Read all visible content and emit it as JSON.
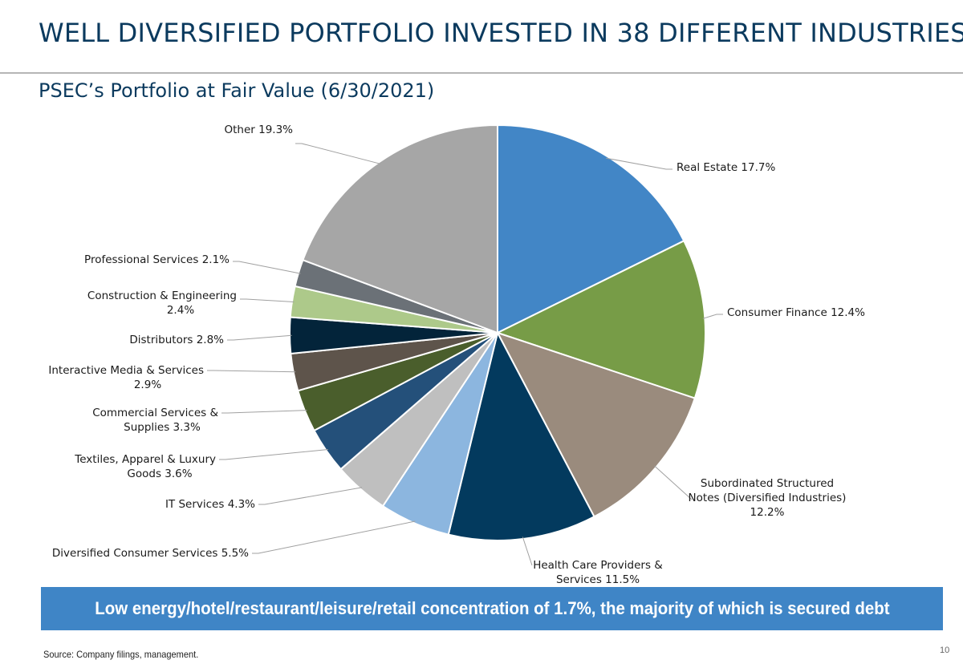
{
  "slide": {
    "title": "WELL DIVERSIFIED PORTFOLIO INVESTED IN 38 DIFFERENT INDUSTRIES",
    "subtitle": "PSEC’s Portfolio at Fair Value (6/30/2021)",
    "banner": "Low energy/hotel/restaurant/leisure/retail concentration of 1.7%, the majority of which is secured debt",
    "source": "Source: Company filings, management.",
    "page_number": "10"
  },
  "chart_data": {
    "type": "pie",
    "title": "PSEC’s Portfolio at Fair Value (6/30/2021)",
    "slices": [
      {
        "label": "Real Estate",
        "value": 17.7,
        "color": "#4286c6",
        "label_lines": [
          "Real Estate 17.7%"
        ]
      },
      {
        "label": "Consumer Finance",
        "value": 12.4,
        "color": "#779c47",
        "label_lines": [
          "Consumer Finance 12.4%"
        ]
      },
      {
        "label": "Subordinated Structured Notes (Diversified Industries)",
        "value": 12.2,
        "color": "#9a8b7d",
        "label_lines": [
          "Subordinated Structured",
          "Notes (Diversified Industries)",
          "12.2%"
        ]
      },
      {
        "label": "Health Care Providers & Services",
        "value": 11.5,
        "color": "#033a5e",
        "label_lines": [
          "Health Care Providers &",
          "Services 11.5%"
        ]
      },
      {
        "label": "Diversified Consumer Services",
        "value": 5.5,
        "color": "#8cb6df",
        "label_lines": [
          "Diversified Consumer Services 5.5%"
        ]
      },
      {
        "label": "IT Services",
        "value": 4.3,
        "color": "#bfbfbf",
        "label_lines": [
          "IT Services 4.3%"
        ]
      },
      {
        "label": "Textiles, Apparel & Luxury Goods",
        "value": 3.6,
        "color": "#24507a",
        "label_lines": [
          "Textiles, Apparel & Luxury",
          "Goods 3.6%"
        ]
      },
      {
        "label": "Commercial Services & Supplies",
        "value": 3.3,
        "color": "#4a5e2c",
        "label_lines": [
          "Commercial Services &",
          "Supplies 3.3%"
        ]
      },
      {
        "label": "Interactive Media & Services",
        "value": 2.9,
        "color": "#5e544b",
        "label_lines": [
          "Interactive Media & Services",
          "2.9%"
        ]
      },
      {
        "label": "Distributors",
        "value": 2.8,
        "color": "#03243a",
        "label_lines": [
          "Distributors 2.8%"
        ]
      },
      {
        "label": "Construction & Engineering",
        "value": 2.4,
        "color": "#adc98a",
        "label_lines": [
          "Construction & Engineering",
          "2.4%"
        ]
      },
      {
        "label": "Professional Services",
        "value": 2.1,
        "color": "#6b7177",
        "label_lines": [
          "Professional Services 2.1%"
        ]
      },
      {
        "label": "Other",
        "value": 19.3,
        "color": "#a6a6a6",
        "label_lines": [
          "Other 19.3%"
        ]
      }
    ]
  }
}
